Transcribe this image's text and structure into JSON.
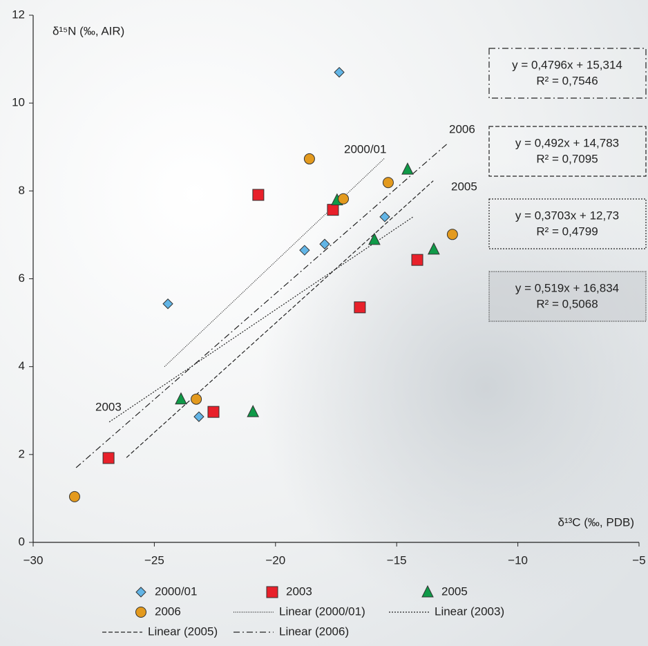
{
  "chart_data": {
    "type": "scatter",
    "xlabel": "δ¹³C (‰, PDB)",
    "ylabel": "δ¹⁵N (‰, AIR)",
    "xlim": [
      -30,
      -5
    ],
    "xticks": [
      {
        "value": -30,
        "label": "−30"
      },
      {
        "value": -25,
        "label": "−25"
      },
      {
        "value": -20,
        "label": "−20"
      },
      {
        "value": -15,
        "label": "−15"
      },
      {
        "value": -10,
        "label": "−10"
      },
      {
        "value": -5,
        "label": "−5"
      }
    ],
    "ylim": [
      0,
      12
    ],
    "yticks": [
      0,
      2,
      4,
      6,
      8,
      10,
      12
    ],
    "series": [
      {
        "name": "2000/01",
        "color": "#62b5e6",
        "marker": "diamond",
        "x": [
          -24.44,
          -17.37,
          -18.8,
          -17.97,
          -15.49,
          -23.16
        ],
        "values": [
          5.43,
          10.7,
          6.65,
          6.79,
          7.41,
          2.86
        ],
        "trendline": {
          "name": "Linear (2000/01)",
          "dash": "1 1.6",
          "x": [
            -24.58,
            -15.49
          ],
          "values": [
            4.0,
            8.75
          ],
          "equation": "y = 0,519x + 16,834",
          "r_squared": "R² = 0,5068"
        }
      },
      {
        "name": "2003",
        "color": "#e8202a",
        "marker": "square",
        "x": [
          -20.71,
          -17.63,
          -26.89,
          -22.56,
          -16.52,
          -14.15
        ],
        "values": [
          7.91,
          7.57,
          1.92,
          2.97,
          5.35,
          6.43
        ],
        "trendline": {
          "name": "Linear (2003)",
          "dash": "2 2",
          "x": [
            -26.86,
            -14.32
          ],
          "values": [
            2.74,
            7.41
          ],
          "equation": "y = 0,3703x + 12,73",
          "r_squared": "R² = 0,4799"
        }
      },
      {
        "name": "2005",
        "color": "#0f9a48",
        "marker": "triangle",
        "x": [
          -17.46,
          -14.55,
          -15.92,
          -13.47,
          -23.9,
          -20.93
        ],
        "values": [
          7.79,
          8.49,
          6.89,
          6.67,
          3.26,
          2.97
        ],
        "trendline": {
          "name": "Linear (2005)",
          "dash": "6 3",
          "x": [
            -26.15,
            -13.49
          ],
          "values": [
            1.93,
            8.23
          ],
          "equation": "y = 0,492x + 14,783",
          "r_squared": "R² = 0,7095"
        }
      },
      {
        "name": "2006",
        "color": "#e39a1e",
        "marker": "circle",
        "x": [
          -18.6,
          -17.2,
          -15.35,
          -12.7,
          -23.27,
          -28.29
        ],
        "values": [
          8.73,
          7.82,
          8.19,
          7.01,
          3.26,
          1.04
        ],
        "trendline": {
          "name": "Linear (2006)",
          "dash": "9 4 2 4",
          "x": [
            -28.23,
            -12.9
          ],
          "values": [
            1.7,
            9.08
          ],
          "equation": "y = 0,4796x + 15,314",
          "r_squared": "R² = 0,7546"
        }
      }
    ]
  }
}
